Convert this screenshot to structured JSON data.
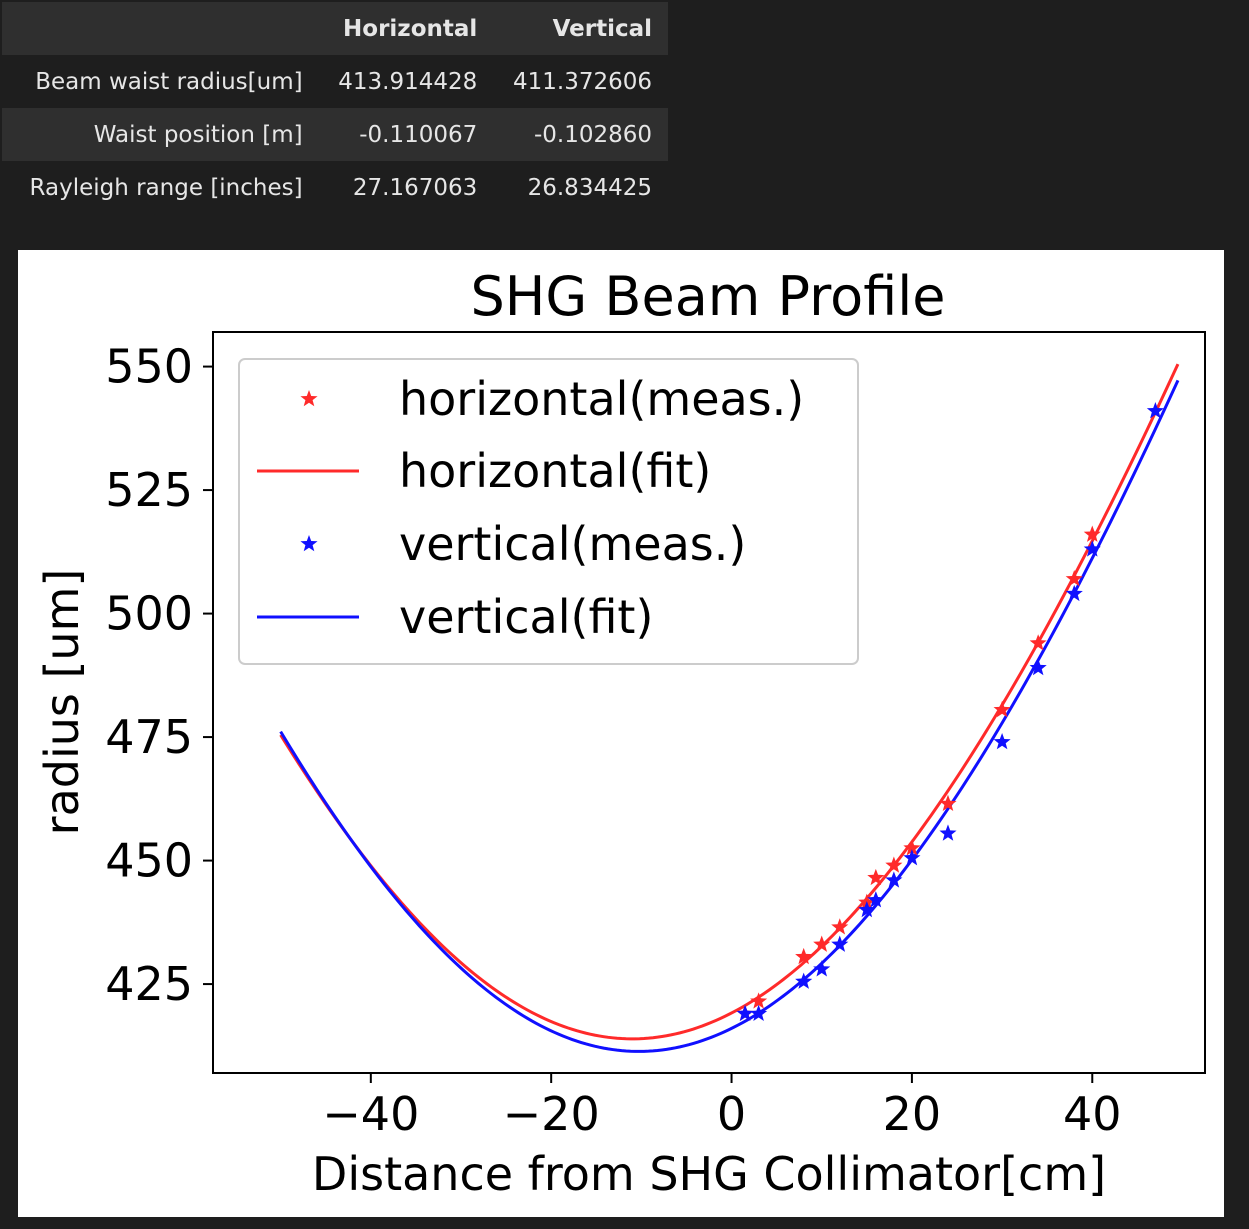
{
  "table": {
    "headers": [
      "",
      "Horizontal",
      "Vertical"
    ],
    "rows": [
      {
        "label": "Beam waist radius[um]",
        "horizontal": "413.914428",
        "vertical": "411.372606"
      },
      {
        "label": "Waist position [m]",
        "horizontal": "-0.110067",
        "vertical": "-0.102860"
      },
      {
        "label": "Rayleigh range [inches]",
        "horizontal": "27.167063",
        "vertical": "26.834425"
      }
    ]
  },
  "chart_data": {
    "type": "line",
    "title": "SHG Beam Profile",
    "xlabel": "Distance from SHG Collimator[cm]",
    "ylabel": "radius [um]",
    "xlim": [
      -57.5,
      52.5
    ],
    "ylim": [
      407,
      557
    ],
    "xticks": [
      -40,
      -20,
      0,
      20,
      40
    ],
    "yticks": [
      425,
      450,
      475,
      500,
      525,
      550
    ],
    "xtick_labels": [
      "−40",
      "−20",
      "0",
      "20",
      "40"
    ],
    "ytick_labels": [
      "425",
      "450",
      "475",
      "500",
      "525",
      "550"
    ],
    "grid": false,
    "legend_position": "upper-left",
    "series": [
      {
        "name": "horizontal(meas.)",
        "kind": "scatter",
        "marker": "star",
        "color": "#ff2a2a",
        "x": [
          1.5,
          3.0,
          8.0,
          10.0,
          12.0,
          15.0,
          16.0,
          18.0,
          20.0,
          24.0,
          30.0,
          34.0,
          38.0,
          40.0
        ],
        "y": [
          419,
          421.5,
          430.5,
          433,
          436.5,
          441.5,
          446.5,
          449,
          452.5,
          461.5,
          480.5,
          494,
          507,
          516
        ]
      },
      {
        "name": "horizontal(fit)",
        "kind": "line",
        "color": "#ff2a2a",
        "model": "gaussian_beam",
        "waist_um": 413.914428,
        "waist_position_cm": -11.0067,
        "rayleigh_range_cm": 69.004,
        "x_range": [
          -50,
          49.5
        ]
      },
      {
        "name": "vertical(meas.)",
        "kind": "scatter",
        "marker": "star",
        "color": "#1010ff",
        "x": [
          1.5,
          3.0,
          8.0,
          10.0,
          12.0,
          15.0,
          16.0,
          18.0,
          20.0,
          24.0,
          30.0,
          34.0,
          38.0,
          40.0,
          47.0
        ],
        "y": [
          419,
          419,
          425.5,
          428,
          433,
          440,
          442,
          446,
          450.5,
          455.5,
          474,
          489,
          504,
          513,
          541
        ]
      },
      {
        "name": "vertical(fit)",
        "kind": "line",
        "color": "#1010ff",
        "model": "gaussian_beam",
        "waist_um": 411.372606,
        "waist_position_cm": -10.286,
        "rayleigh_range_cm": 68.159,
        "x_range": [
          -50,
          49.5
        ]
      }
    ]
  }
}
